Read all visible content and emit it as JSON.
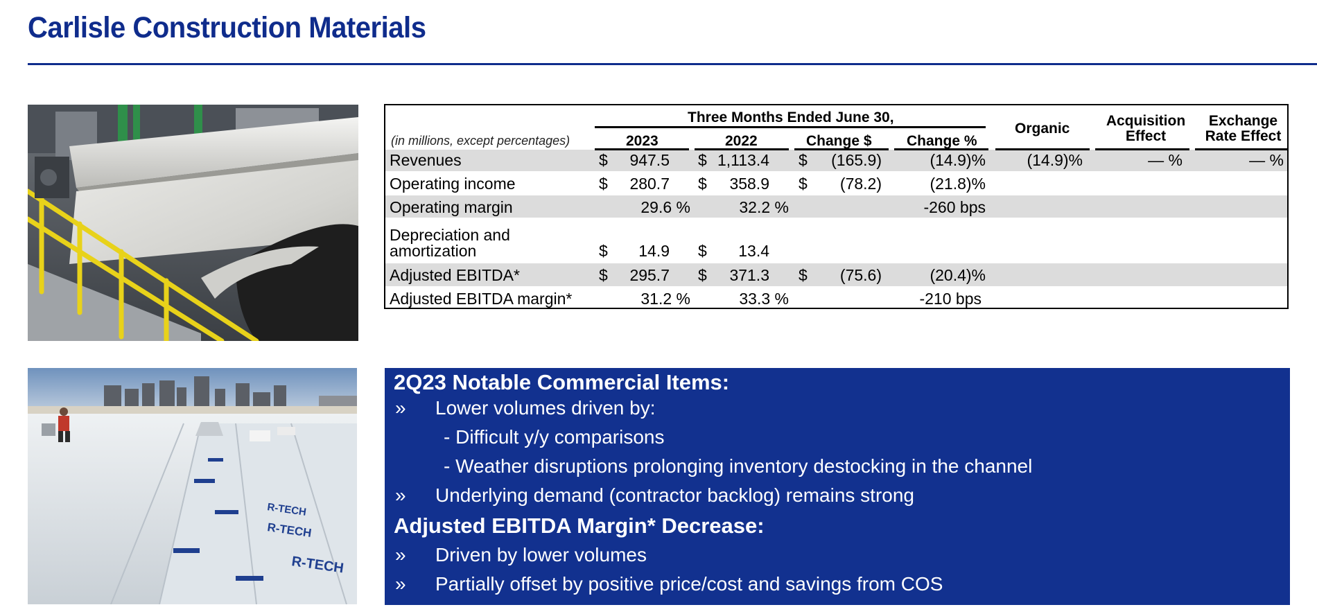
{
  "page": {
    "title": "Carlisle Construction Materials"
  },
  "table": {
    "group_header": "Three Months Ended June 30,",
    "note": "(in millions, except percentages)",
    "columns": [
      "2023",
      "2022",
      "Change $",
      "Change %",
      "Organic",
      "Acquisition Effect",
      "Exchange Rate Effect"
    ],
    "col_acq_line1": "Acquisition",
    "col_acq_line2": "Effect",
    "col_fx_line1": "Exchange",
    "col_fx_line2": "Rate Effect",
    "rows": [
      {
        "label": "Revenues",
        "d1": "$",
        "v2023": "947.5",
        "d2": "$",
        "v2022": "1,113.4",
        "d3": "$",
        "chg": "(165.9)",
        "chgpct": "(14.9)%",
        "organic": "(14.9)%",
        "acq": "— %",
        "fx": "— %"
      },
      {
        "label": "Operating income",
        "d1": "$",
        "v2023": "280.7",
        "d2": "$",
        "v2022": "358.9",
        "d3": "$",
        "chg": "(78.2)",
        "chgpct": "(21.8)%",
        "organic": "",
        "acq": "",
        "fx": ""
      },
      {
        "label": "Operating margin",
        "d1": "",
        "v2023": "29.6 %",
        "d2": "",
        "v2022": "32.2 %",
        "d3": "",
        "chg": "",
        "chgpct": "-260 bps",
        "organic": "",
        "acq": "",
        "fx": ""
      },
      {
        "label_line1": "Depreciation and",
        "label_line2": "amortization",
        "d1": "$",
        "v2023": "14.9",
        "d2": "$",
        "v2022": "13.4",
        "d3": "",
        "chg": "",
        "chgpct": "",
        "organic": "",
        "acq": "",
        "fx": ""
      },
      {
        "label": "Adjusted EBITDA*",
        "d1": "$",
        "v2023": "295.7",
        "d2": "$",
        "v2022": "371.3",
        "d3": "$",
        "chg": "(75.6)",
        "chgpct": "(20.4)%",
        "organic": "",
        "acq": "",
        "fx": ""
      },
      {
        "label": "Adjusted EBITDA margin*",
        "d1": "",
        "v2023": "31.2 %",
        "d2": "",
        "v2022": "33.3 %",
        "d3": "",
        "chg": "",
        "chgpct": "-210 bps",
        "organic": "",
        "acq": "",
        "fx": ""
      }
    ]
  },
  "commentary": {
    "heading1": "2Q23 Notable Commercial Items:",
    "bullet_glyph": "»",
    "item1": "Lower volumes driven by:",
    "sub1": "- Difficult y/y comparisons",
    "sub2": "- Weather disruptions prolonging inventory destocking in the channel",
    "item2": "Underlying demand (contractor backlog) remains strong",
    "heading2": "Adjusted EBITDA Margin* Decrease:",
    "item3": "Driven by lower volumes",
    "item4": "Partially offset by positive price/cost and savings from COS"
  },
  "photo2": {
    "membrane_text": "R-TECH"
  },
  "colors": {
    "brand_blue": "#0f2c8c",
    "box_blue": "#12318f",
    "row_band": "#dcdcdc",
    "rail_yellow": "#e8d21a"
  }
}
